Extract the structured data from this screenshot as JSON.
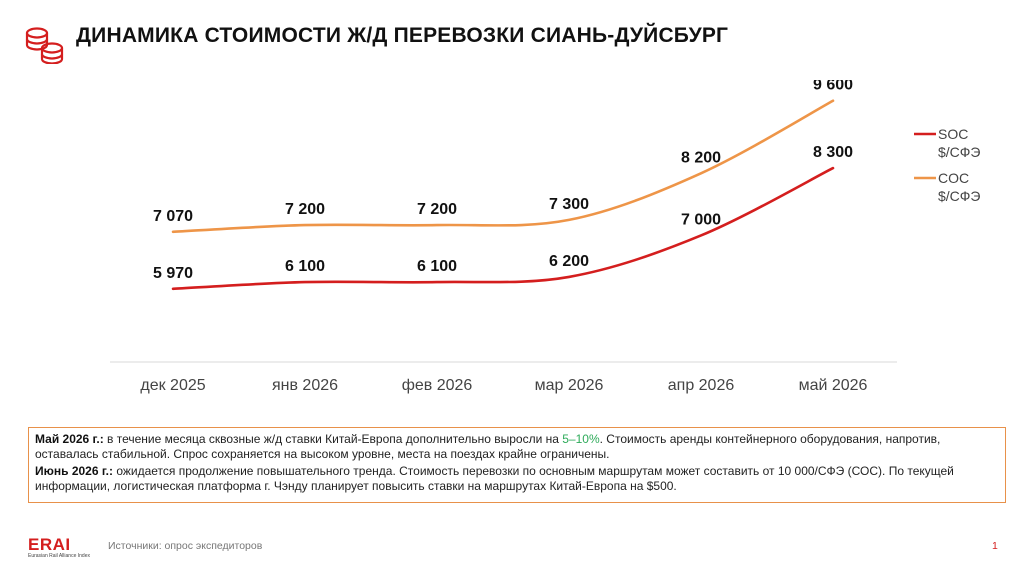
{
  "page": {
    "title": "ДИНАМИКА СТОИМОСТИ Ж/Д ПЕРЕВОЗКИ СИАНЬ-ДУЙСБУРГ",
    "icon": "coins-stack-icon",
    "accent_color": "#d41e1e"
  },
  "chart_data": {
    "type": "line",
    "categories": [
      "дек 2025",
      "янв 2026",
      "фев 2026",
      "мар 2026",
      "апр 2026",
      "май 2026"
    ],
    "series": [
      {
        "name": "SOC $/СФЭ",
        "color": "#d41e1e",
        "values": [
          5970,
          6100,
          6100,
          6200,
          7000,
          8300
        ],
        "labels": [
          "5 970",
          "6 100",
          "6 100",
          "6 200",
          "7 000",
          "8 300"
        ]
      },
      {
        "name": "COC $/СФЭ",
        "color": "#ee9548",
        "values": [
          7070,
          7200,
          7200,
          7300,
          8200,
          9600
        ],
        "labels": [
          "7 070",
          "7 200",
          "7 200",
          "7 300",
          "8 200",
          "9 600"
        ]
      }
    ],
    "ylim": [
      4500,
      10000
    ],
    "grid": false,
    "legend_position": "right",
    "smooth": true
  },
  "notes": {
    "may_label": "Май 2026 г.:",
    "may_text_1": " в течение месяца сквозные ж/д ставки Китай-Европа дополнительно выросли на ",
    "may_highlight": "5–10%",
    "may_text_2": ". Стоимость аренды контейнерного оборудования, напротив, оставалась стабильной. Спрос сохраняется на высоком уровне, места на поездах крайне ограничены.",
    "june_label": "Июнь 2026 г.:",
    "june_text": " ожидается продолжение повышательного тренда. Стоимость перевозки по основным маршрутам может составить от 10 000/СФЭ (СОС). По текущей информации, логистическая платформа г. Чэнду планирует повысить ставки на маршрутах Китай-Европа на $500."
  },
  "footer": {
    "logo_text": "ERAI",
    "logo_subtext": "Eurasian Rail Alliance Index",
    "source": "Источники: опрос экспедиторов",
    "page_number": "1"
  }
}
